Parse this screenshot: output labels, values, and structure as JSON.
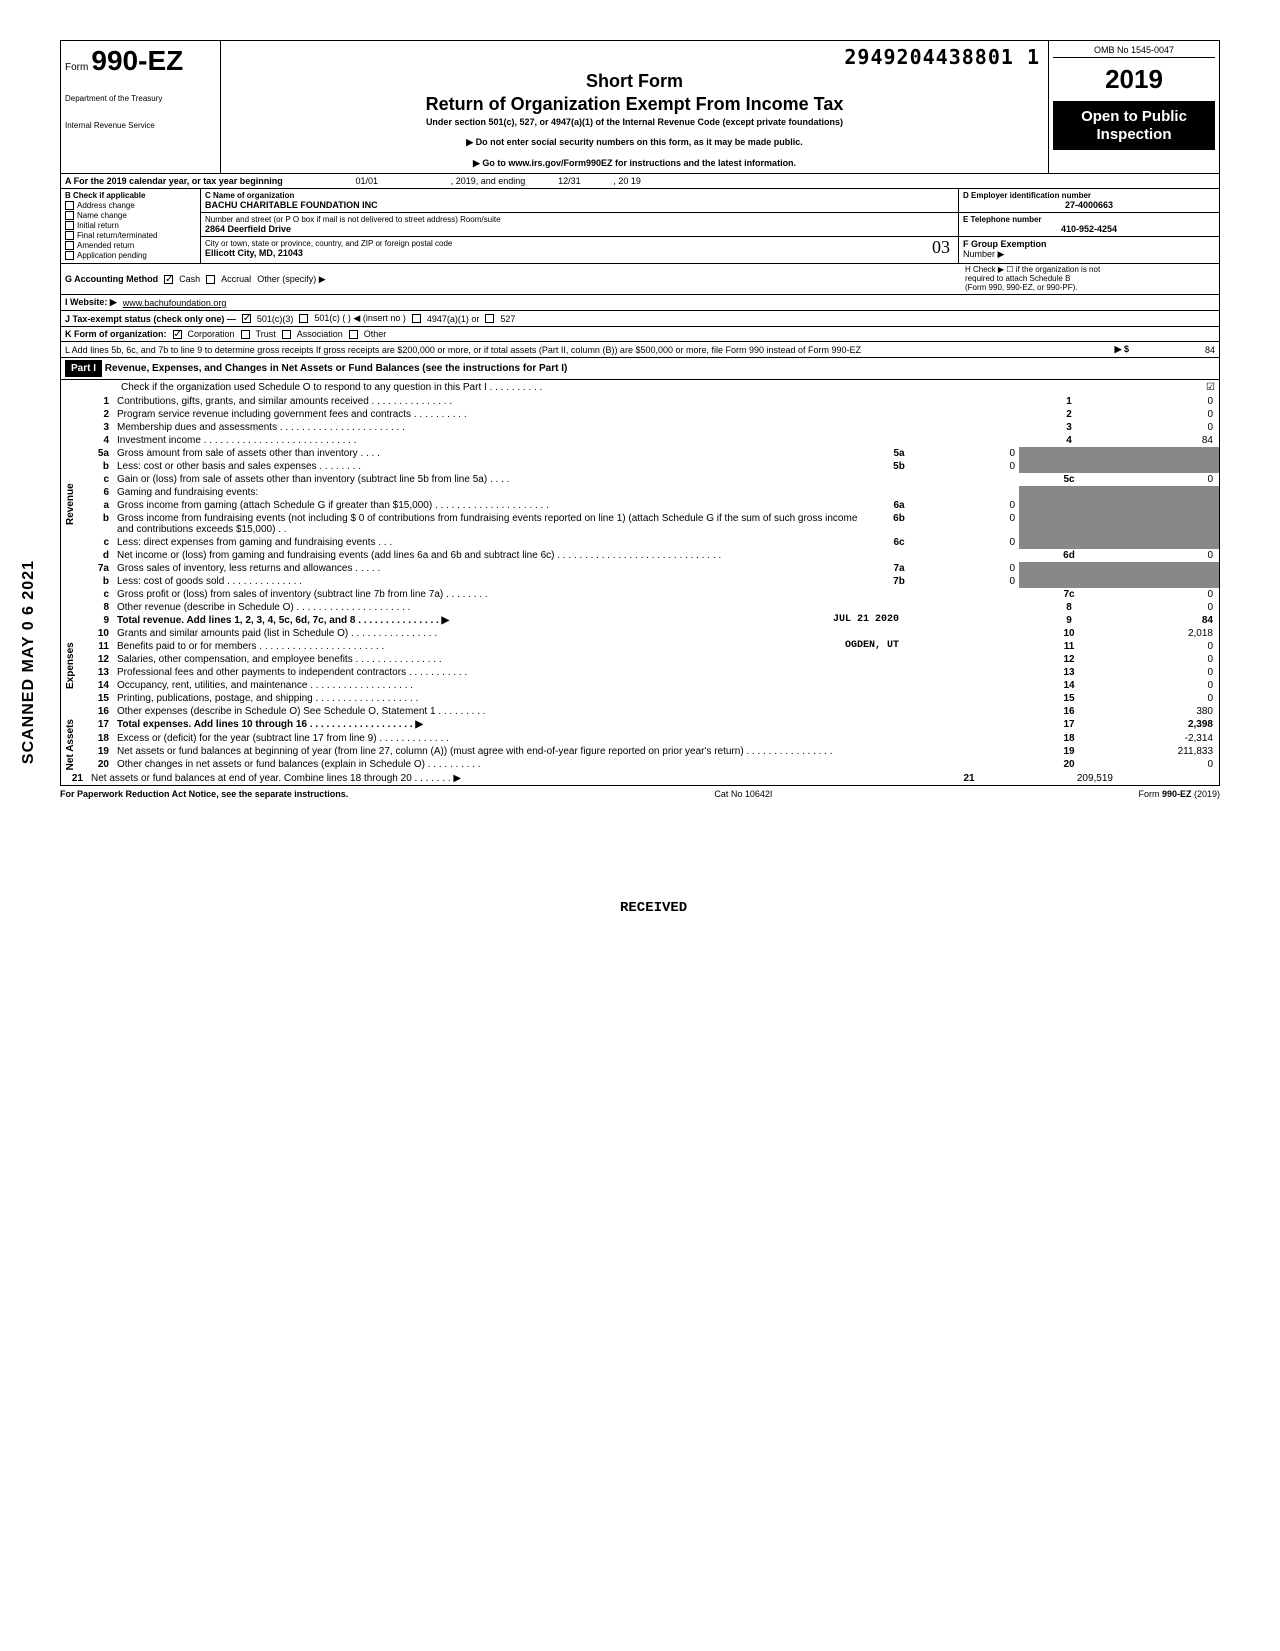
{
  "header": {
    "doc_code": "2949204438801 1",
    "form_prefix": "Form",
    "form_number": "990-EZ",
    "short_form": "Short Form",
    "return_title": "Return of Organization Exempt From Income Tax",
    "under_section": "Under section 501(c), 527, or 4947(a)(1) of the Internal Revenue Code (except private foundations)",
    "directive1": "▶ Do not enter social security numbers on this form, as it may be made public.",
    "directive2": "▶ Go to www.irs.gov/Form990EZ for instructions and the latest information.",
    "dept1": "Department of the Treasury",
    "dept2": "Internal Revenue Service",
    "omb": "OMB No 1545-0047",
    "year": "2019",
    "open1": "Open to Public",
    "open2": "Inspection"
  },
  "rowA": {
    "label": "A For the 2019 calendar year, or tax year beginning",
    "begin": "01/01",
    "mid": ", 2019, and ending",
    "end": "12/31",
    "tail": ", 20   19"
  },
  "colB": {
    "title": "B Check if applicable",
    "items": [
      "Address change",
      "Name change",
      "Initial return",
      "Final return/terminated",
      "Amended return",
      "Application pending"
    ]
  },
  "colC": {
    "name_label": "C Name of organization",
    "name": "BACHU CHARITABLE FOUNDATION INC",
    "addr_label": "Number and street (or P O  box if mail is not delivered to street address)               Room/suite",
    "addr": "2864 Deerfield Drive",
    "city_label": "City or town, state or province, country, and ZIP or foreign postal code",
    "city": "Ellicott City, MD, 21043"
  },
  "colDE": {
    "d_label": "D Employer identification number",
    "d_val": "27-4000663",
    "e_label": "E Telephone number",
    "e_val": "410-952-4254",
    "f_label": "F Group Exemption",
    "f_label2": "Number ▶"
  },
  "rowG": {
    "g": "G Accounting Method",
    "cash": "Cash",
    "accrual": "Accrual",
    "other": "Other (specify) ▶",
    "h": "H Check ▶ ☐ if the organization is not",
    "h2": "required to attach Schedule B",
    "h3": "(Form 990, 990-EZ, or 990-PF)."
  },
  "rowI": {
    "i": "I  Website: ▶",
    "site": "www.bachufoundation.org"
  },
  "rowJ": {
    "j": "J Tax-exempt status (check only one) —",
    "o1": "501(c)(3)",
    "o2": "501(c) (        ) ◀ (insert no )",
    "o3": "4947(a)(1) or",
    "o4": "527"
  },
  "rowK": {
    "k": "K Form of organization:",
    "o1": "Corporation",
    "o2": "Trust",
    "o3": "Association",
    "o4": "Other"
  },
  "rowL": {
    "text": "L Add lines 5b, 6c, and 7b to line 9 to determine gross receipts  If gross receipts are $200,000 or more, or if total assets (Part II, column (B)) are $500,000 or more, file Form 990 instead of Form 990-EZ",
    "arrow": "▶  $",
    "val": "84"
  },
  "part1": {
    "badge": "Part I",
    "title": "Revenue, Expenses, and Changes in Net Assets or Fund Balances (see the instructions for Part I)",
    "check_o": "Check if the organization used Schedule O to respond to any question in this Part I  .  .  .  .  .  .  .  .  .  .",
    "check_o_box": "☑"
  },
  "side_labels": {
    "scanned": "SCANNED MAY 0 6 2021",
    "revenue": "Revenue",
    "expenses": "Expenses",
    "netassets": "Net Assets"
  },
  "stamps": {
    "received": "RECEIVED",
    "date": "JUL 21 2020",
    "ogden": "OGDEN, UT"
  },
  "lines": [
    {
      "n": "1",
      "desc": "Contributions, gifts, grants, and similar amounts received .  .  .  .  .  .  .  .  .  .  .  .  .  .  .",
      "box": "1",
      "val": "0"
    },
    {
      "n": "2",
      "desc": "Program service revenue including government fees and contracts  .  .  .  .  .  .  .  .  .  .",
      "box": "2",
      "val": "0"
    },
    {
      "n": "3",
      "desc": "Membership dues and assessments .  .  .  .  .  .  .  .  .  .  .  .  .  .  .  .  .  .  .  .  .  .  .",
      "box": "3",
      "val": "0"
    },
    {
      "n": "4",
      "desc": "Investment income   .  .  .  .  .  .  .  .  .  .  .  .  .  .  .  .  .  .  .  .  .  .  .  .  .  .  .  .",
      "box": "4",
      "val": "84"
    },
    {
      "n": "5a",
      "desc": "Gross amount from sale of assets other than inventory  .  .  .  .",
      "ibox": "5a",
      "ival": "0"
    },
    {
      "n": "b",
      "desc": "Less: cost or other basis and sales expenses .  .  .  .  .  .  .  .",
      "ibox": "5b",
      "ival": "0"
    },
    {
      "n": "c",
      "desc": "Gain or (loss) from sale of assets other than inventory (subtract line 5b from line 5a)  .  .  .  .",
      "box": "5c",
      "val": "0"
    },
    {
      "n": "6",
      "desc": "Gaming and fundraising events:"
    },
    {
      "n": "a",
      "desc": "Gross income from gaming (attach Schedule G if greater than $15,000) .  .  .  .  .  .  .  .  .  .  .  .  .  .  .  .  .  .  .  .  .",
      "ibox": "6a",
      "ival": "0"
    },
    {
      "n": "b",
      "desc": "Gross income from fundraising events (not including  $             0 of contributions from fundraising events reported on line 1) (attach Schedule G if the sum of such gross income and contributions exceeds $15,000) .  .",
      "ibox": "6b",
      "ival": "0"
    },
    {
      "n": "c",
      "desc": "Less: direct expenses from gaming and fundraising events  .  .  .",
      "ibox": "6c",
      "ival": "0"
    },
    {
      "n": "d",
      "desc": "Net income or (loss) from gaming and fundraising events (add lines 6a and 6b and subtract line 6c)   .  .  .  .  .  .  .  .  .  .  .  .  .  .  .  .  .  .  .  .  .  .  .  .  .  .  .  .  .  .",
      "box": "6d",
      "val": "0"
    },
    {
      "n": "7a",
      "desc": "Gross sales of inventory, less returns and allowances .  .  .  .  .",
      "ibox": "7a",
      "ival": "0"
    },
    {
      "n": "b",
      "desc": "Less: cost of goods sold   .  .  .  .  .  .  .  .  .  .  .  .  .  .",
      "ibox": "7b",
      "ival": "0"
    },
    {
      "n": "c",
      "desc": "Gross profit or (loss) from sales of inventory (subtract line 7b from line 7a)  .  .  .  .  .  .  .  .",
      "box": "7c",
      "val": "0"
    },
    {
      "n": "8",
      "desc": "Other revenue (describe in Schedule O) .  .  .  .  .  .  .  .  .  .  .  .  .  .  .  .  .  .  .  .  .",
      "box": "8",
      "val": "0"
    },
    {
      "n": "9",
      "desc": "Total revenue. Add lines 1, 2, 3, 4, 5c, 6d, 7c, and 8  .  .  .  .  .  .  .  .  .  .  .  .  .  .  .  ▶",
      "box": "9",
      "val": "84",
      "bold": true
    },
    {
      "n": "10",
      "desc": "Grants and similar amounts paid (list in Schedule O)  .  .  .  .  .  .  .  .  .  .  .  .  .  .  .  .",
      "box": "10",
      "val": "2,018"
    },
    {
      "n": "11",
      "desc": "Benefits paid to or for members  .  .  .  .  .  .  .  .  .  .  .  .  .  .  .  .  .  .  .  .  .  .  .",
      "box": "11",
      "val": "0"
    },
    {
      "n": "12",
      "desc": "Salaries, other compensation, and employee benefits .  .  .  .  .  .  .  .  .  .  .  .  .  .  .  .",
      "box": "12",
      "val": "0"
    },
    {
      "n": "13",
      "desc": "Professional fees and other payments to independent contractors .  .  .  .  .  .  .  .  .  .  .",
      "box": "13",
      "val": "0"
    },
    {
      "n": "14",
      "desc": "Occupancy, rent, utilities, and maintenance  .  .  .  .  .  .  .  .  .  .  .  .  .  .  .  .  .  .  .",
      "box": "14",
      "val": "0"
    },
    {
      "n": "15",
      "desc": "Printing, publications, postage, and shipping .  .  .  .  .  .  .  .  .  .  .  .  .  .  .  .  .  .  .",
      "box": "15",
      "val": "0"
    },
    {
      "n": "16",
      "desc": "Other expenses (describe in Schedule O)  See Schedule O, Statement 1  .  .  .  .  .  .  .  .  .",
      "box": "16",
      "val": "380"
    },
    {
      "n": "17",
      "desc": "Total expenses. Add lines 10 through 16 .  .  .  .  .  .  .  .  .  .  .  .  .  .  .  .  .  .  .  ▶",
      "box": "17",
      "val": "2,398",
      "bold": true
    },
    {
      "n": "18",
      "desc": "Excess or (deficit) for the year (subtract line 17 from line 9)  .  .  .  .  .  .  .  .  .  .  .  .  .",
      "box": "18",
      "val": "-2,314"
    },
    {
      "n": "19",
      "desc": "Net assets or fund balances at beginning of year (from line 27, column (A)) (must agree with end-of-year figure reported on prior year's return)    .  .  .  .  .  .  .  .  .  .  .  .  .  .  .  .",
      "box": "19",
      "val": "211,833"
    },
    {
      "n": "20",
      "desc": "Other changes in net assets or fund balances (explain in Schedule O) .  .  .  .  .  .  .  .  .  .",
      "box": "20",
      "val": "0"
    },
    {
      "n": "21",
      "desc": "Net assets or fund balances at end of year. Combine lines 18 through 20   .  .  .  .  .  .  .  ▶",
      "box": "21",
      "val": "209,519"
    }
  ],
  "footer": {
    "left": "For Paperwork Reduction Act Notice, see the separate instructions.",
    "mid": "Cat  No  10642I",
    "right": "Form 990-EZ (2019)"
  },
  "handwritten": "03"
}
